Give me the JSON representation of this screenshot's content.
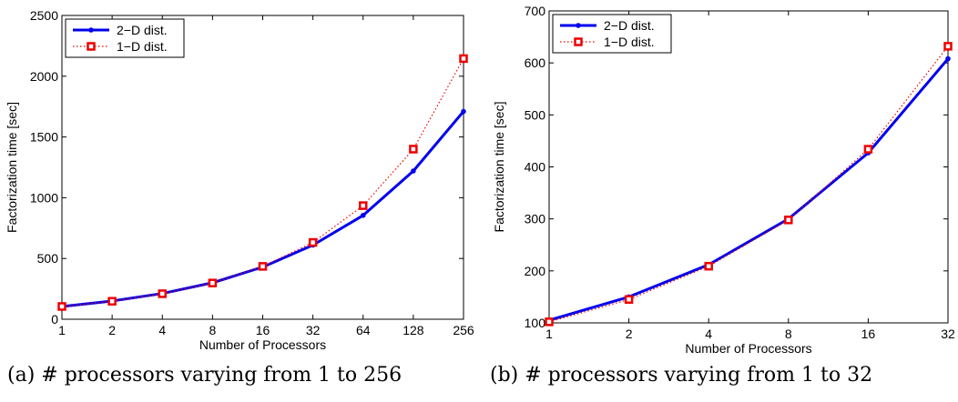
{
  "chart_data": [
    {
      "type": "line",
      "caption": "(a) # processors varying from 1 to 256",
      "xlabel": "Number of Processors",
      "ylabel": "Factorization time [sec]",
      "x_scale": "log2",
      "categories": [
        "1",
        "2",
        "4",
        "8",
        "16",
        "32",
        "64",
        "128",
        "256"
      ],
      "x": [
        1,
        2,
        4,
        8,
        16,
        32,
        64,
        128,
        256
      ],
      "ylim": [
        0,
        2500
      ],
      "yticks": [
        0,
        500,
        1000,
        1500,
        2000,
        2500
      ],
      "legend_position": "top-left",
      "grid": false,
      "series": [
        {
          "name": "2−D dist.",
          "color": "#0000ee",
          "style": "solid",
          "marker": "dot",
          "values": [
            105,
            150,
            212,
            300,
            430,
            610,
            855,
            1220,
            1710
          ]
        },
        {
          "name": "1−D dist.",
          "color": "#ee0000",
          "style": "dotted",
          "marker": "square",
          "values": [
            105,
            148,
            210,
            298,
            435,
            632,
            935,
            1400,
            2145
          ]
        }
      ]
    },
    {
      "type": "line",
      "caption": "(b) # processors varying from 1 to 32",
      "xlabel": "Number of Processors",
      "ylabel": "Factorization time [sec]",
      "x_scale": "log2",
      "categories": [
        "1",
        "2",
        "4",
        "8",
        "16",
        "32"
      ],
      "x": [
        1,
        2,
        4,
        8,
        16,
        32
      ],
      "ylim": [
        100,
        700
      ],
      "yticks": [
        100,
        200,
        300,
        400,
        500,
        600,
        700
      ],
      "legend_position": "top-left",
      "grid": false,
      "series": [
        {
          "name": "2−D dist.",
          "color": "#0000ee",
          "style": "solid",
          "marker": "dot",
          "values": [
            105,
            150,
            212,
            300,
            427,
            608
          ]
        },
        {
          "name": "1−D dist.",
          "color": "#ee0000",
          "style": "dotted",
          "marker": "square",
          "values": [
            102,
            145,
            209,
            298,
            434,
            632
          ]
        }
      ]
    }
  ]
}
